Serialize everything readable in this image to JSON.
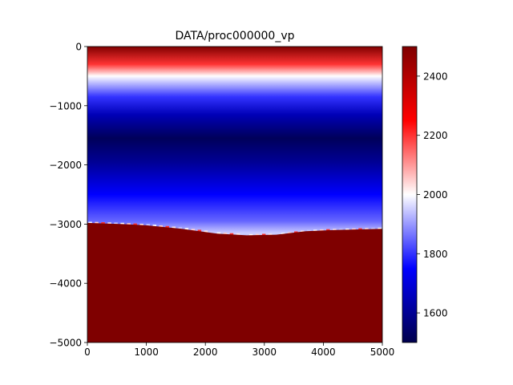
{
  "chart_data": {
    "type": "heatmap",
    "title": "DATA/proc000000_vp",
    "xlim": [
      0,
      5000
    ],
    "ylim": [
      -5000,
      0
    ],
    "x_ticks": [
      0,
      1000,
      2000,
      3000,
      4000,
      5000
    ],
    "x_tick_labels": [
      "0",
      "1000",
      "2000",
      "3000",
      "4000",
      "5000"
    ],
    "y_ticks": [
      0,
      -1000,
      -2000,
      -3000,
      -4000,
      -5000
    ],
    "y_tick_labels": [
      "0",
      "−1000",
      "−2000",
      "−3000",
      "−4000",
      "−5000"
    ],
    "colormap": "seismic",
    "color_range": [
      1500,
      2500
    ],
    "colorbar_ticks": [
      1600,
      1800,
      2000,
      2200,
      2400
    ],
    "colorbar_tick_labels": [
      "1600",
      "1800",
      "2000",
      "2200",
      "2400"
    ],
    "velocity_profile": [
      {
        "depth": 0,
        "value": 2500
      },
      {
        "depth": -300,
        "value": 2200
      },
      {
        "depth": -500,
        "value": 2000
      },
      {
        "depth": -850,
        "value": 1800
      },
      {
        "depth": -1150,
        "value": 1650
      },
      {
        "depth": -1550,
        "value": 1520
      },
      {
        "depth": -1950,
        "value": 1600
      },
      {
        "depth": -2500,
        "value": 1750
      },
      {
        "depth": -2950,
        "value": 1850
      },
      {
        "depth": -3150,
        "value": 1950
      }
    ],
    "interface": [
      {
        "x": 0,
        "depth": -2980
      },
      {
        "x": 600,
        "depth": -3000
      },
      {
        "x": 1000,
        "depth": -3020
      },
      {
        "x": 1600,
        "depth": -3080
      },
      {
        "x": 2200,
        "depth": -3160
      },
      {
        "x": 2700,
        "depth": -3190
      },
      {
        "x": 3200,
        "depth": -3180
      },
      {
        "x": 3700,
        "depth": -3120
      },
      {
        "x": 4200,
        "depth": -3100
      },
      {
        "x": 5000,
        "depth": -3080
      }
    ],
    "lower_layer_value": 2500
  },
  "colors": {
    "low": "#00004c",
    "mid": "#ffffff",
    "high": "#7f0000"
  }
}
